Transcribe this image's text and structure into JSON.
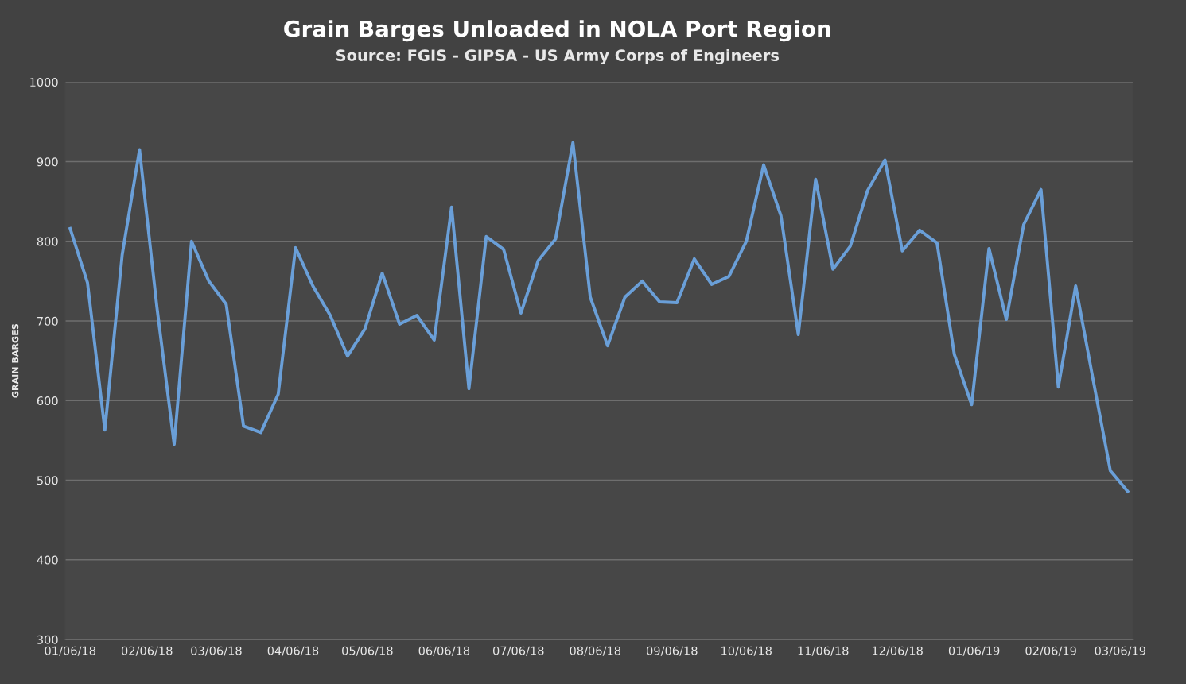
{
  "chart_data": {
    "type": "line",
    "title": "Grain Barges Unloaded in NOLA Port Region",
    "subtitle": "Source: FGIS - GIPSA - US Army Corps of Engineers",
    "ylabel": "GRAIN BARGES",
    "x": [
      "2018-01-06",
      "2018-01-13",
      "2018-01-20",
      "2018-01-27",
      "2018-02-03",
      "2018-02-10",
      "2018-02-17",
      "2018-02-24",
      "2018-03-03",
      "2018-03-10",
      "2018-03-17",
      "2018-03-24",
      "2018-03-31",
      "2018-04-07",
      "2018-04-14",
      "2018-04-21",
      "2018-04-28",
      "2018-05-05",
      "2018-05-12",
      "2018-05-19",
      "2018-05-26",
      "2018-06-02",
      "2018-06-09",
      "2018-06-16",
      "2018-06-23",
      "2018-06-30",
      "2018-07-07",
      "2018-07-14",
      "2018-07-21",
      "2018-07-28",
      "2018-08-04",
      "2018-08-11",
      "2018-08-18",
      "2018-08-25",
      "2018-09-01",
      "2018-09-08",
      "2018-09-15",
      "2018-09-22",
      "2018-09-29",
      "2018-10-06",
      "2018-10-13",
      "2018-10-20",
      "2018-10-27",
      "2018-11-03",
      "2018-11-10",
      "2018-11-17",
      "2018-11-24",
      "2018-12-01",
      "2018-12-08",
      "2018-12-15",
      "2018-12-22",
      "2018-12-29",
      "2019-01-05",
      "2019-01-12",
      "2019-01-19",
      "2019-01-26",
      "2019-02-02",
      "2019-02-09",
      "2019-02-16",
      "2019-02-23",
      "2019-03-02",
      "2019-03-09"
    ],
    "series": [
      {
        "color": "#6a9fd8",
        "values": [
          816,
          748,
          563,
          783,
          915,
          718,
          545,
          800,
          750,
          721,
          568,
          560,
          608,
          792,
          744,
          707,
          656,
          690,
          760,
          696,
          707,
          676,
          843,
          615,
          806,
          790,
          710,
          776,
          803,
          924,
          730,
          669,
          730,
          750,
          724,
          723,
          778,
          746,
          756,
          800,
          896,
          832,
          683,
          878,
          765,
          794,
          864,
          902,
          788,
          814,
          798,
          658,
          595,
          791,
          702,
          821,
          865,
          617,
          744,
          627,
          512,
          486
        ]
      }
    ],
    "xlim": [
      "2018-01-04",
      "2019-03-11"
    ],
    "xticks": [
      {
        "value": "2018-01-06",
        "label": "01/06/18"
      },
      {
        "value": "2018-02-06",
        "label": "02/06/18"
      },
      {
        "value": "2018-03-06",
        "label": "03/06/18"
      },
      {
        "value": "2018-04-06",
        "label": "04/06/18"
      },
      {
        "value": "2018-05-06",
        "label": "05/06/18"
      },
      {
        "value": "2018-06-06",
        "label": "06/06/18"
      },
      {
        "value": "2018-07-06",
        "label": "07/06/18"
      },
      {
        "value": "2018-08-06",
        "label": "08/06/18"
      },
      {
        "value": "2018-09-06",
        "label": "09/06/18"
      },
      {
        "value": "2018-10-06",
        "label": "10/06/18"
      },
      {
        "value": "2018-11-06",
        "label": "11/06/18"
      },
      {
        "value": "2018-12-06",
        "label": "12/06/18"
      },
      {
        "value": "2019-01-06",
        "label": "01/06/19"
      },
      {
        "value": "2019-02-06",
        "label": "02/06/19"
      },
      {
        "value": "2019-03-06",
        "label": "03/06/19"
      }
    ],
    "ylim": [
      300,
      1000
    ],
    "yticks": [
      300,
      400,
      500,
      600,
      700,
      800,
      900,
      1000
    ],
    "grid": "y",
    "marker": "none",
    "line_style": "solid"
  }
}
